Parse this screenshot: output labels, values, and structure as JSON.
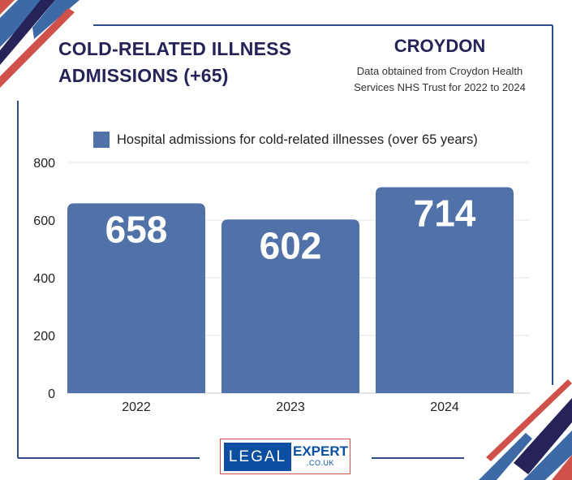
{
  "header": {
    "title_line1": "COLD-RELATED ILLNESS",
    "title_line2": "ADMISSIONS (+65)",
    "city": "CROYDON",
    "source_line1": "Data obtained from Croydon Health",
    "source_line2": "Services NHS Trust for 2022 to 2024"
  },
  "logo": {
    "left_text": "LEGAL",
    "right_text": "EXPERT",
    "suffix": ".CO.UK"
  },
  "colors": {
    "bar": "#5072a8",
    "navy": "#252357",
    "red": "#d0504a",
    "blue": "#3d69a6",
    "frame": "#2e4f86"
  },
  "chart_data": {
    "type": "bar",
    "title": "COLD-RELATED ILLNESS ADMISSIONS (+65)",
    "categories": [
      "2022",
      "2023",
      "2024"
    ],
    "series": [
      {
        "name": "Hospital admissions for cold-related illnesses (over 65 years)",
        "values": [
          658,
          602,
          714
        ]
      }
    ],
    "data_labels": [
      "658",
      "602",
      "714"
    ],
    "yticks": [
      "0",
      "200",
      "400",
      "600",
      "800"
    ],
    "ylim": [
      0,
      800
    ],
    "grid": true,
    "legend": "top",
    "xlabel": "",
    "ylabel": ""
  }
}
